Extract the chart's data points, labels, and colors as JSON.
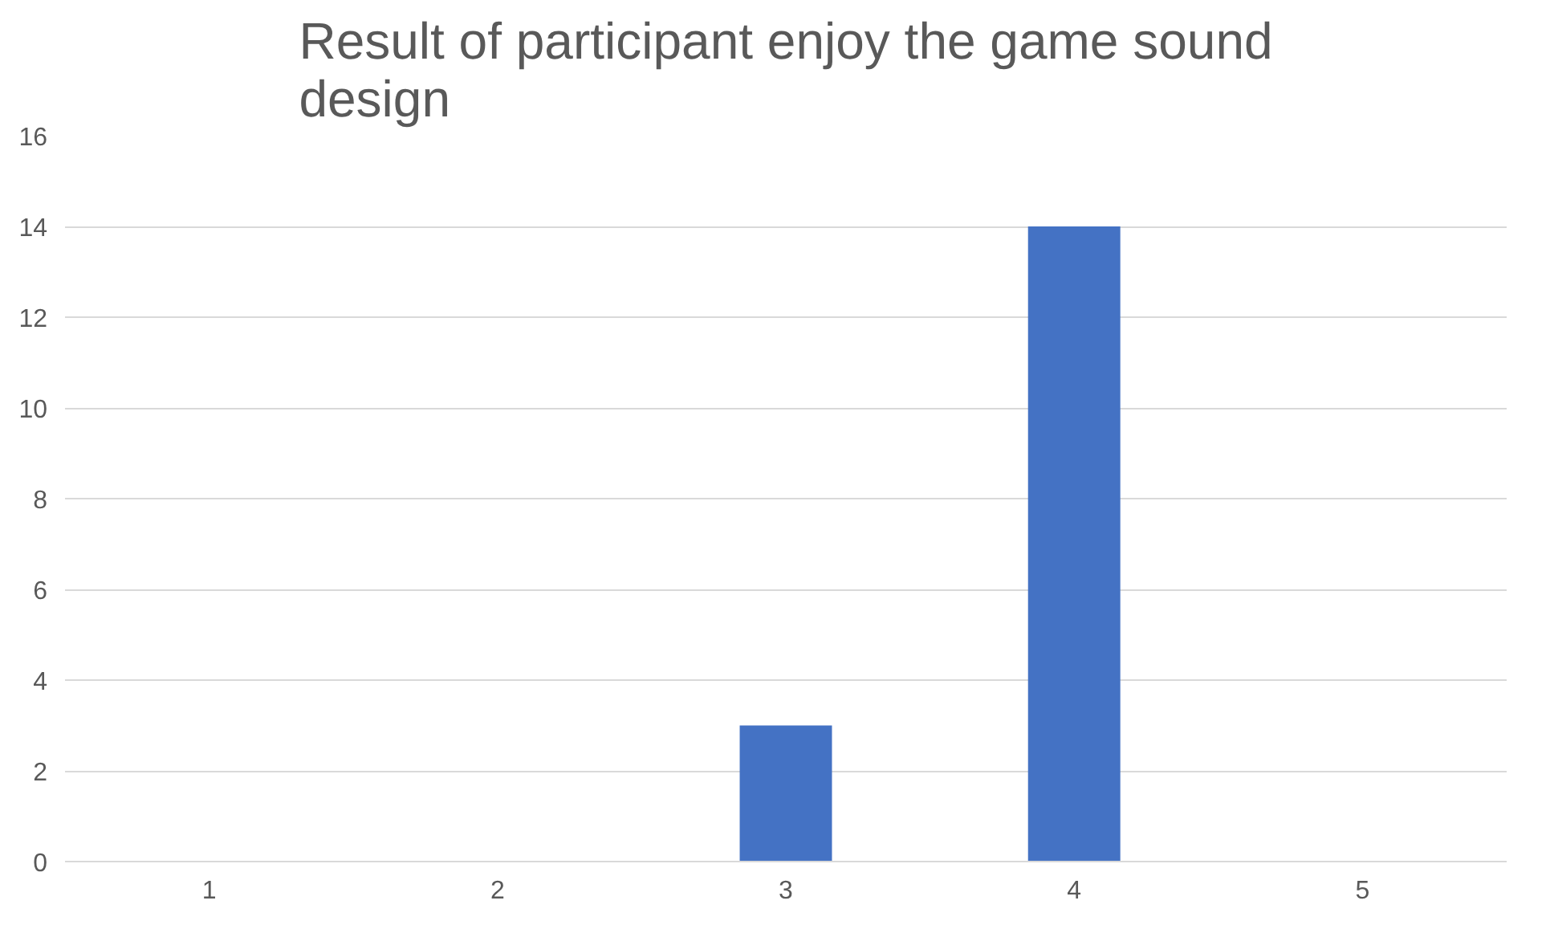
{
  "chart_data": {
    "type": "bar",
    "title": "Result of participant enjoy the game sound design",
    "categories": [
      "1",
      "2",
      "3",
      "4",
      "5"
    ],
    "values": [
      0,
      0,
      3,
      14,
      0
    ],
    "color": "#4472c4",
    "ylim": [
      0,
      16
    ],
    "yticks": [
      0,
      2,
      4,
      6,
      8,
      10,
      12,
      14,
      16
    ],
    "grid": "y"
  }
}
